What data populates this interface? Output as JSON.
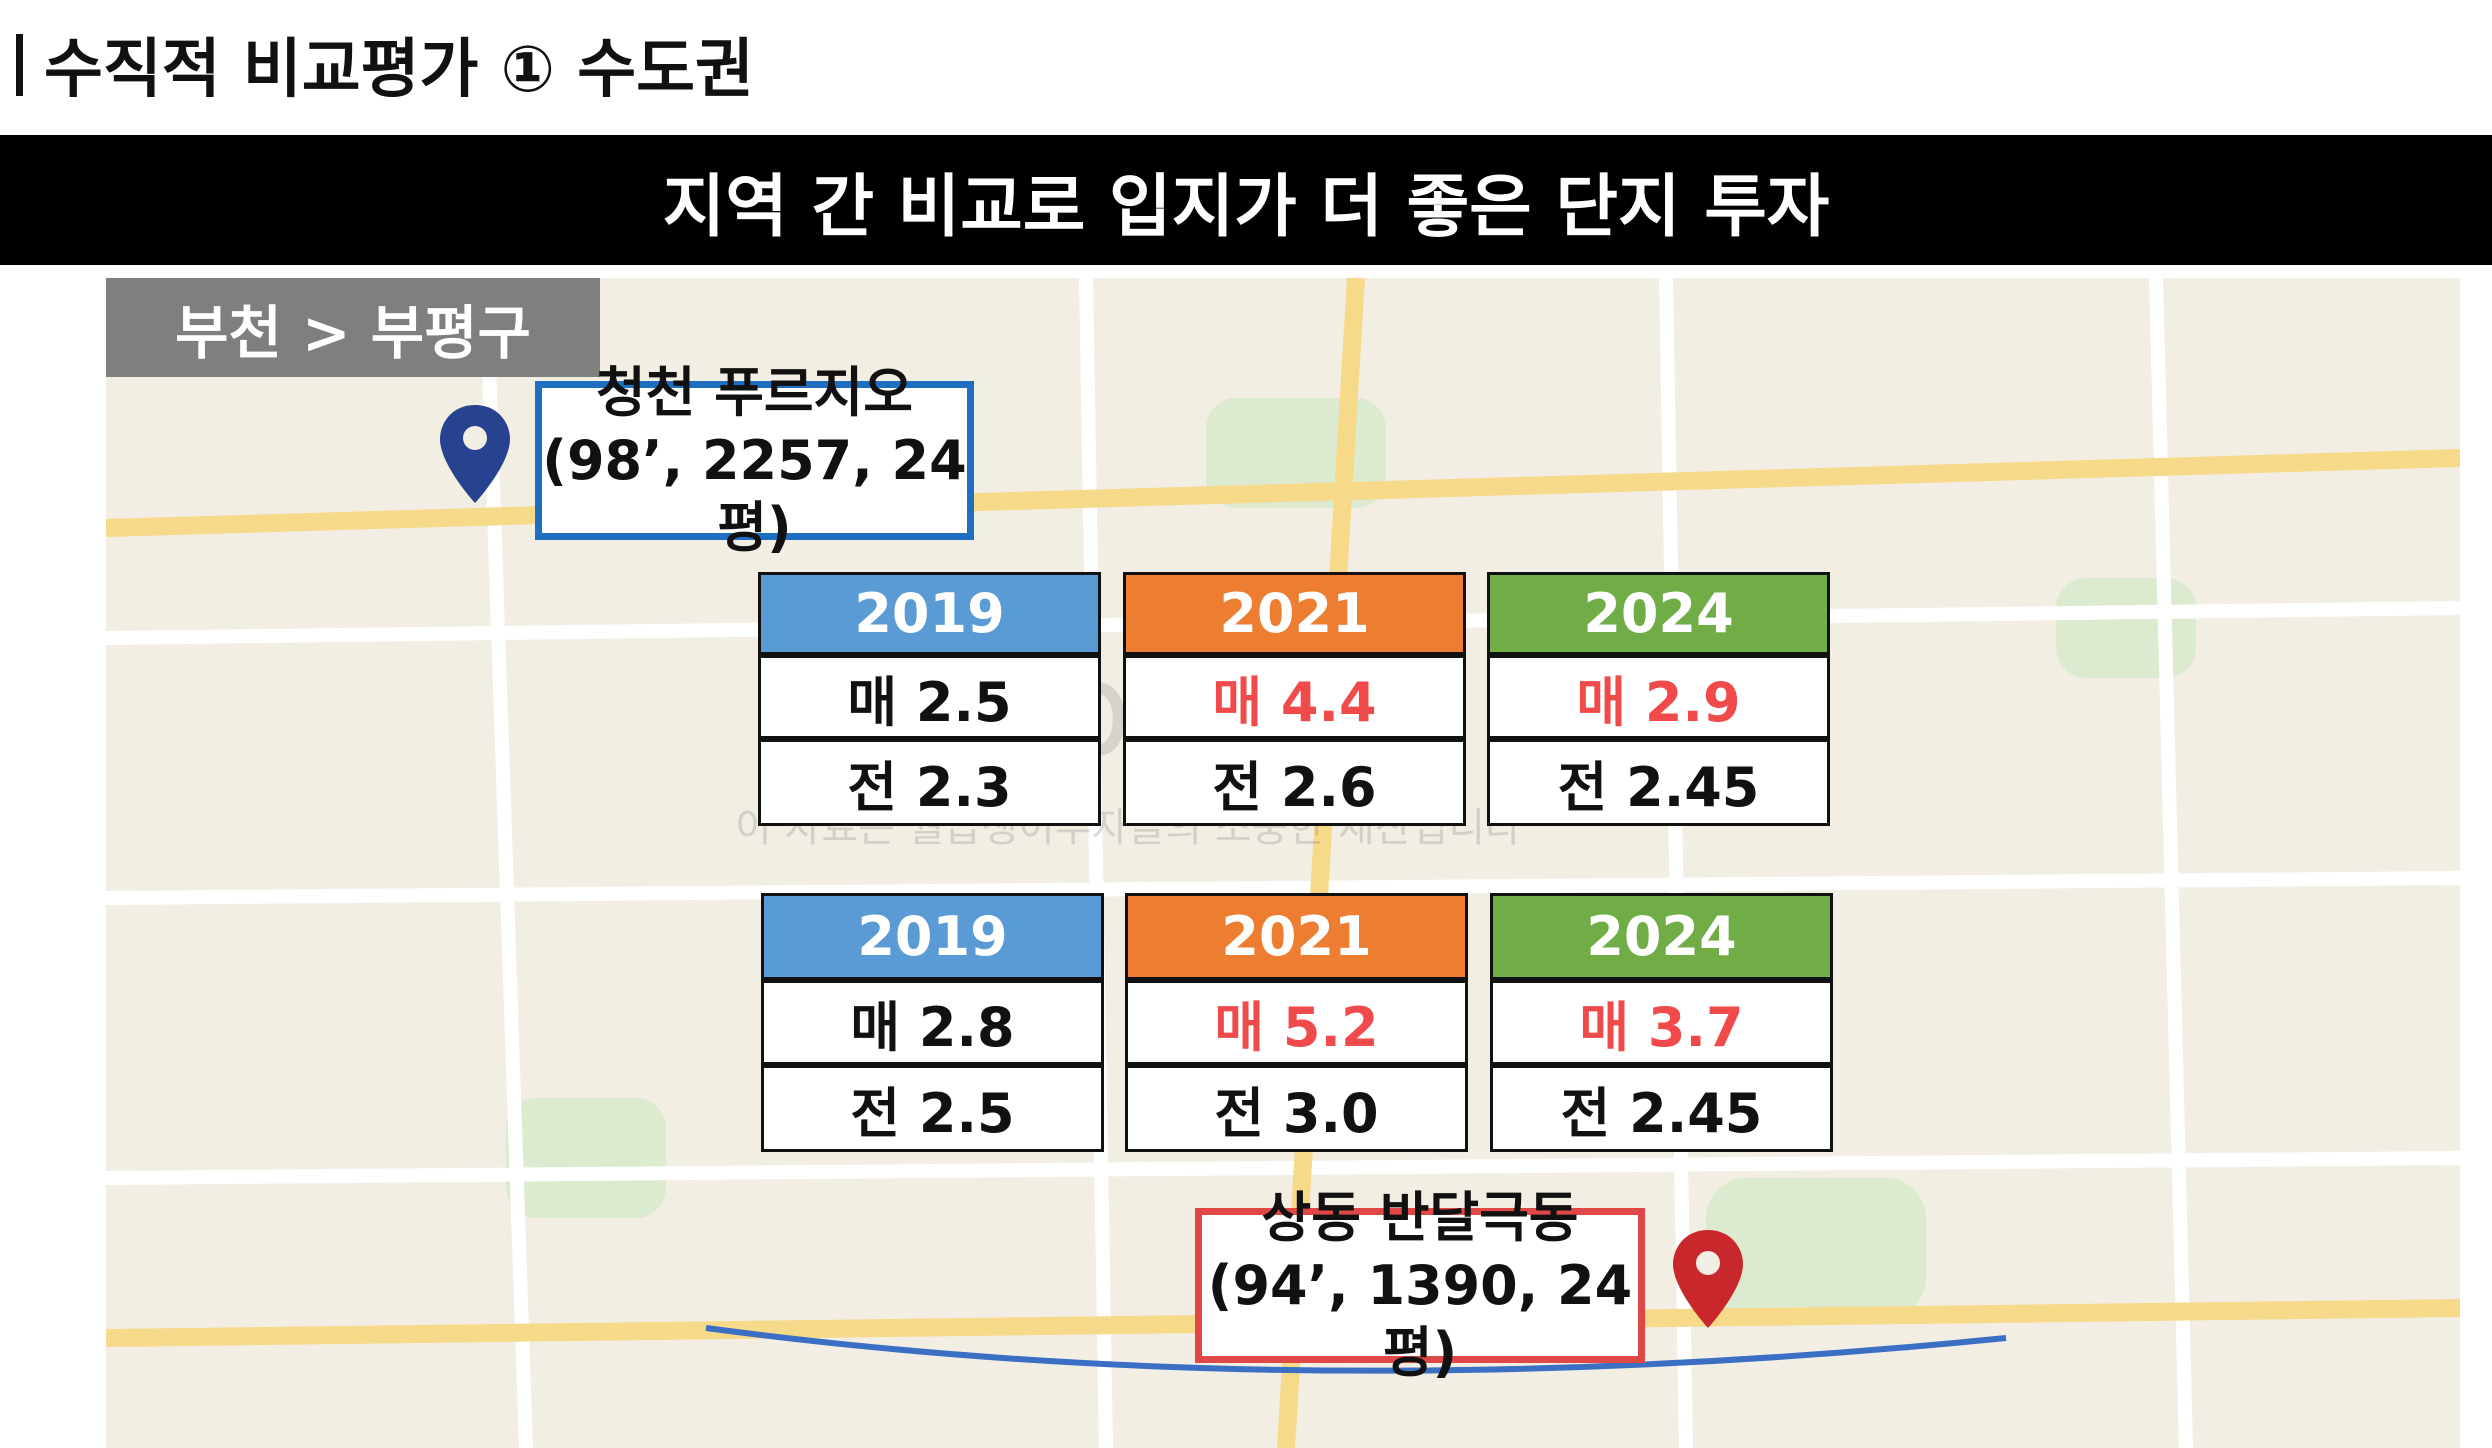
{
  "header": {
    "title": "수직적 비교평가 ① 수도권"
  },
  "banner": "지역 간 비교로 입지가 더 좋은 단지 투자",
  "map": {
    "region": "부천 > 부평구",
    "watermark": "월급쟁이부자들",
    "notice": "이 자료는 월급쟁이부자들의 소중한 재산입니다"
  },
  "callouts": [
    {
      "name": "청천 푸르지오",
      "detail": "(98’, 2257, 24평)"
    },
    {
      "name": "상동 반달극동",
      "detail": "(94’, 1390, 24평)"
    }
  ],
  "tables": [
    {
      "columns": [
        {
          "year": "2019",
          "color": "#5b9bd5",
          "sale": "매 2.5",
          "jeonse": "전 2.3",
          "highlight": false
        },
        {
          "year": "2021",
          "color": "#ed7d31",
          "sale": "매 4.4",
          "jeonse": "전 2.6",
          "highlight": true
        },
        {
          "year": "2024",
          "color": "#70ad47",
          "sale": "매 2.9",
          "jeonse": "전 2.45",
          "highlight": true
        }
      ]
    },
    {
      "columns": [
        {
          "year": "2019",
          "color": "#5b9bd5",
          "sale": "매 2.8",
          "jeonse": "전 2.5",
          "highlight": false
        },
        {
          "year": "2021",
          "color": "#ed7d31",
          "sale": "매 5.2",
          "jeonse": "전 3.0",
          "highlight": true
        },
        {
          "year": "2024",
          "color": "#70ad47",
          "sale": "매 3.7",
          "jeonse": "전 2.45",
          "highlight": true
        }
      ]
    }
  ]
}
